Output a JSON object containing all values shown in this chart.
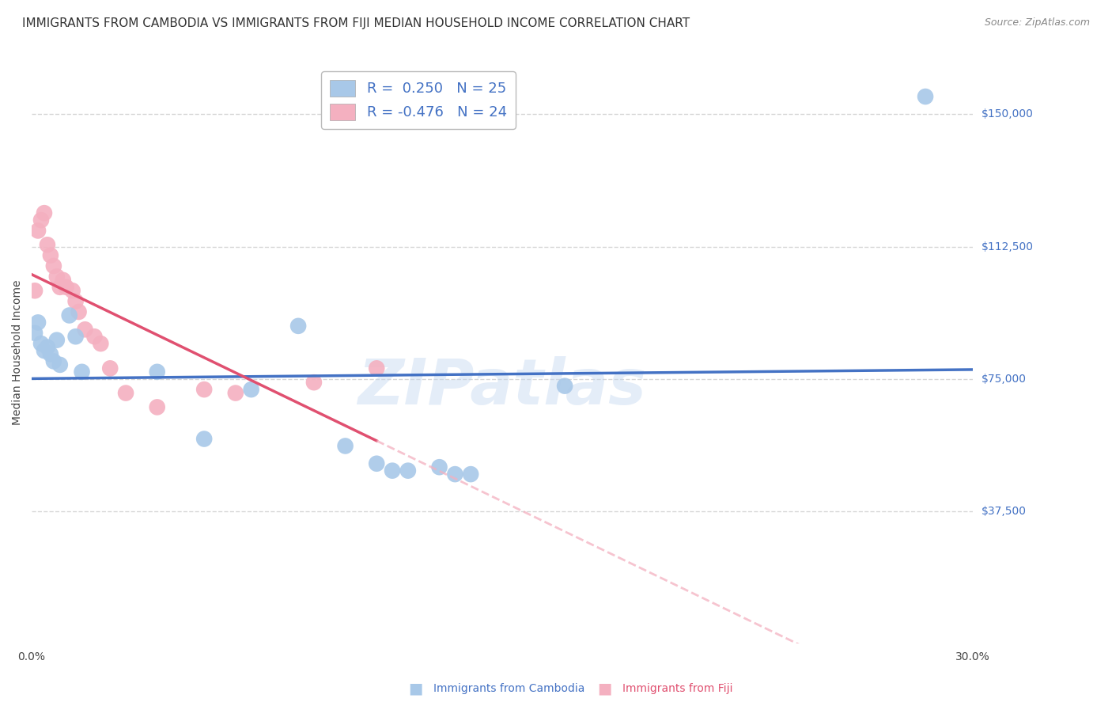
{
  "title": "IMMIGRANTS FROM CAMBODIA VS IMMIGRANTS FROM FIJI MEDIAN HOUSEHOLD INCOME CORRELATION CHART",
  "source": "Source: ZipAtlas.com",
  "ylabel": "Median Household Income",
  "ytick_labels": [
    "$37,500",
    "$75,000",
    "$112,500",
    "$150,000"
  ],
  "ytick_values": [
    37500,
    75000,
    112500,
    150000
  ],
  "ylim": [
    0,
    165000
  ],
  "xlim": [
    0.0,
    0.3
  ],
  "watermark": "ZIPatlas",
  "cambodia_x": [
    0.001,
    0.002,
    0.003,
    0.004,
    0.005,
    0.006,
    0.007,
    0.008,
    0.009,
    0.012,
    0.014,
    0.016,
    0.04,
    0.055,
    0.07,
    0.085,
    0.1,
    0.11,
    0.115,
    0.12,
    0.13,
    0.135,
    0.14,
    0.17,
    0.285
  ],
  "cambodia_y": [
    88000,
    91000,
    85000,
    83000,
    84000,
    82000,
    80000,
    86000,
    79000,
    93000,
    87000,
    77000,
    77000,
    58000,
    72000,
    90000,
    56000,
    51000,
    49000,
    49000,
    50000,
    48000,
    48000,
    73000,
    155000
  ],
  "fiji_x": [
    0.001,
    0.002,
    0.003,
    0.004,
    0.005,
    0.006,
    0.007,
    0.008,
    0.009,
    0.01,
    0.011,
    0.013,
    0.014,
    0.015,
    0.017,
    0.02,
    0.022,
    0.025,
    0.03,
    0.04,
    0.055,
    0.065,
    0.09,
    0.11
  ],
  "fiji_y": [
    100000,
    117000,
    120000,
    122000,
    113000,
    110000,
    107000,
    104000,
    101000,
    103000,
    101000,
    100000,
    97000,
    94000,
    89000,
    87000,
    85000,
    78000,
    71000,
    67000,
    72000,
    71000,
    74000,
    78000
  ],
  "cambodia_color": "#A8C8E8",
  "fiji_color": "#F4B0C0",
  "cambodia_line_color": "#4472C4",
  "fiji_line_color": "#E05070",
  "fiji_dash_color": "#F4B0C0",
  "grid_color": "#CCCCCC",
  "background_color": "#FFFFFF",
  "title_fontsize": 11,
  "axis_label_fontsize": 10,
  "tick_fontsize": 10,
  "legend_fontsize": 13
}
